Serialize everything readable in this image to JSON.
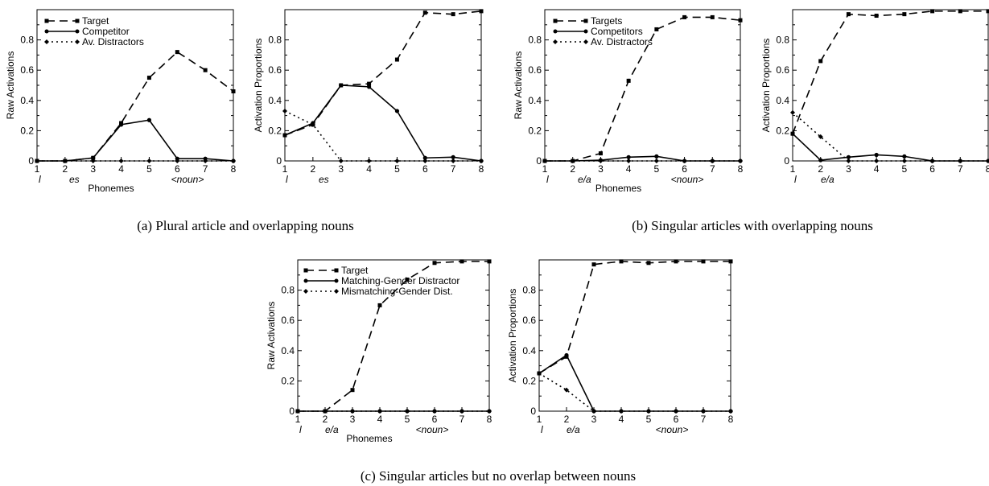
{
  "figure_captions": {
    "a": "(a) Plural article and overlapping nouns",
    "b": "(b) Singular articles with overlapping nouns",
    "c": "(c) Singular articles but no overlap between nouns"
  },
  "chart_data": [
    {
      "panel": "a-left",
      "type": "line",
      "xlabel": "Phonemes",
      "ylabel": "Raw Activations",
      "x": [
        1,
        2,
        3,
        4,
        5,
        6,
        7,
        8
      ],
      "xlim": [
        1,
        8
      ],
      "ylim": [
        0,
        1
      ],
      "yticks": [
        0,
        0.2,
        0.4,
        0.6,
        0.8
      ],
      "phoneme_labels": [
        "l",
        "es",
        "<noun>"
      ],
      "legend": "top-left",
      "series": [
        {
          "name": "Target",
          "style": "dashed",
          "marker": "square",
          "values": [
            0.0,
            0.0,
            0.02,
            0.25,
            0.55,
            0.72,
            0.6,
            0.46
          ]
        },
        {
          "name": "Competitor",
          "style": "solid",
          "marker": "circle",
          "values": [
            0.0,
            0.0,
            0.02,
            0.24,
            0.27,
            0.015,
            0.015,
            0.0
          ]
        },
        {
          "name": "Av. Distractors",
          "style": "dotted",
          "marker": "diamond",
          "values": [
            0.0,
            0.0,
            0.0,
            0.0,
            0.0,
            0.0,
            0.0,
            0.0
          ]
        }
      ]
    },
    {
      "panel": "a-right",
      "type": "line",
      "xlabel": "",
      "ylabel": "Activation Proportions",
      "x": [
        1,
        2,
        3,
        4,
        5,
        6,
        7,
        8
      ],
      "xlim": [
        1,
        8
      ],
      "ylim": [
        0,
        1
      ],
      "yticks": [
        0,
        0.2,
        0.4,
        0.6,
        0.8
      ],
      "phoneme_labels": [
        "l",
        "es"
      ],
      "series": [
        {
          "style": "dashed",
          "marker": "square",
          "values": [
            0.17,
            0.24,
            0.5,
            0.51,
            0.67,
            0.98,
            0.97,
            0.99
          ]
        },
        {
          "style": "solid",
          "marker": "circle",
          "values": [
            0.17,
            0.25,
            0.5,
            0.49,
            0.33,
            0.02,
            0.025,
            0.0
          ]
        },
        {
          "style": "dotted",
          "marker": "diamond",
          "values": [
            0.33,
            0.24,
            0.0,
            0.0,
            0.0,
            0.0,
            0.0,
            0.0
          ]
        }
      ]
    },
    {
      "panel": "b-left",
      "type": "line",
      "xlabel": "Phonemes",
      "ylabel": "Raw Activations",
      "x": [
        1,
        2,
        3,
        4,
        5,
        6,
        7,
        8
      ],
      "xlim": [
        1,
        8
      ],
      "ylim": [
        0,
        1
      ],
      "yticks": [
        0,
        0.2,
        0.4,
        0.6,
        0.8
      ],
      "phoneme_labels": [
        "l",
        "e/a",
        "<noun>"
      ],
      "legend": "top-left",
      "series": [
        {
          "name": "Targets",
          "style": "dashed",
          "marker": "square",
          "values": [
            0.0,
            0.0,
            0.05,
            0.53,
            0.87,
            0.95,
            0.95,
            0.93
          ]
        },
        {
          "name": "Competitors",
          "style": "solid",
          "marker": "circle",
          "values": [
            0.0,
            0.0,
            0.005,
            0.025,
            0.03,
            0.0,
            0.0,
            0.0
          ]
        },
        {
          "name": "Av. Distractors",
          "style": "dotted",
          "marker": "diamond",
          "values": [
            0.0,
            0.0,
            0.0,
            0.0,
            0.0,
            0.0,
            0.0,
            0.0
          ]
        }
      ]
    },
    {
      "panel": "b-right",
      "type": "line",
      "xlabel": "",
      "ylabel": "Activation Proportions",
      "x": [
        1,
        2,
        3,
        4,
        5,
        6,
        7,
        8
      ],
      "xlim": [
        1,
        8
      ],
      "ylim": [
        0,
        1
      ],
      "yticks": [
        0,
        0.2,
        0.4,
        0.6,
        0.8
      ],
      "phoneme_labels": [
        "l",
        "e/a"
      ],
      "series": [
        {
          "style": "dashed",
          "marker": "square",
          "values": [
            0.18,
            0.66,
            0.97,
            0.96,
            0.97,
            0.99,
            0.99,
            0.99
          ]
        },
        {
          "style": "solid",
          "marker": "circle",
          "values": [
            0.18,
            0.005,
            0.025,
            0.04,
            0.03,
            0.0,
            0.0,
            0.0
          ]
        },
        {
          "style": "dotted",
          "marker": "diamond",
          "values": [
            0.32,
            0.16,
            0.0,
            0.0,
            0.0,
            0.0,
            0.0,
            0.0
          ]
        }
      ]
    },
    {
      "panel": "c-left",
      "type": "line",
      "xlabel": "Phonemes",
      "ylabel": "Raw Activations",
      "x": [
        1,
        2,
        3,
        4,
        5,
        6,
        7,
        8
      ],
      "xlim": [
        1,
        8
      ],
      "ylim": [
        0,
        1
      ],
      "yticks": [
        0,
        0.2,
        0.4,
        0.6,
        0.8
      ],
      "phoneme_labels": [
        "l",
        "e/a",
        "<noun>"
      ],
      "legend": "top-left",
      "series": [
        {
          "name": "Target",
          "style": "dashed",
          "marker": "square",
          "values": [
            0.0,
            0.0,
            0.14,
            0.7,
            0.87,
            0.98,
            0.99,
            0.99
          ]
        },
        {
          "name": "Matching-Gender Distractor",
          "style": "solid",
          "marker": "circle",
          "values": [
            0.0,
            0.0,
            0.0,
            0.0,
            0.0,
            0.0,
            0.0,
            0.0
          ]
        },
        {
          "name": "Mismatching-Gender Dist.",
          "style": "dotted",
          "marker": "diamond",
          "values": [
            0.0,
            0.0,
            0.0,
            0.0,
            0.0,
            0.0,
            0.0,
            0.0
          ]
        }
      ]
    },
    {
      "panel": "c-right",
      "type": "line",
      "xlabel": "",
      "ylabel": "Activation Proportions",
      "x": [
        1,
        2,
        3,
        4,
        5,
        6,
        7,
        8
      ],
      "xlim": [
        1,
        8
      ],
      "ylim": [
        0,
        1
      ],
      "yticks": [
        0,
        0.2,
        0.4,
        0.6,
        0.8
      ],
      "phoneme_labels": [
        "l",
        "e/a",
        "<noun>"
      ],
      "series": [
        {
          "style": "dashed",
          "marker": "square",
          "values": [
            0.25,
            0.36,
            0.97,
            0.99,
            0.98,
            0.99,
            0.99,
            0.99
          ]
        },
        {
          "style": "solid",
          "marker": "circle",
          "values": [
            0.25,
            0.37,
            0.0,
            0.0,
            0.0,
            0.0,
            0.0,
            0.0
          ]
        },
        {
          "style": "dotted",
          "marker": "diamond",
          "values": [
            0.25,
            0.14,
            0.0,
            0.0,
            0.0,
            0.0,
            0.0,
            0.0
          ]
        }
      ]
    }
  ]
}
